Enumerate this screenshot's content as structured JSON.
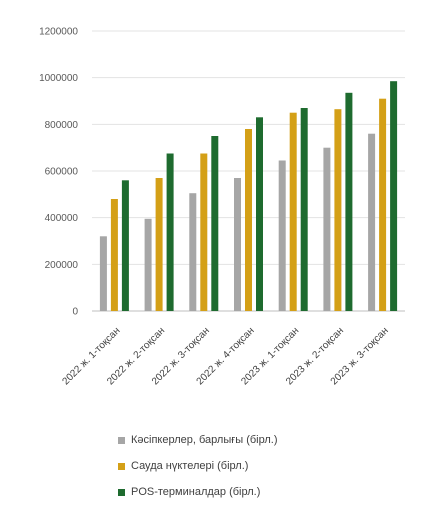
{
  "chart_data": {
    "type": "bar",
    "categories": [
      "2022 ж. 1-тоқсан",
      "2022 ж. 2-тоқсан",
      "2022 ж. 3-тоқсан",
      "2022 ж. 4-тоқсан",
      "2023 ж. 1-тоқсан",
      "2023 ж. 2-тоқсан",
      "2023 ж. 3-тоқсан"
    ],
    "series": [
      {
        "name": "Кәсіпкерлер, барлығы (бірл.)",
        "color": "#a6a6a6",
        "values": [
          320000,
          395000,
          505000,
          570000,
          645000,
          700000,
          760000
        ]
      },
      {
        "name": "Сауда нүктелері (бірл.)",
        "color": "#d4a017",
        "values": [
          480000,
          570000,
          675000,
          780000,
          850000,
          865000,
          910000
        ]
      },
      {
        "name": "POS-терминалдар (бірл.)",
        "color": "#1e6b2f",
        "values": [
          560000,
          675000,
          750000,
          830000,
          870000,
          935000,
          985000
        ]
      }
    ],
    "yticks": [
      "0",
      "200000",
      "400000",
      "600000",
      "800000",
      "1000000",
      "1200000"
    ],
    "ylim": [
      0,
      1200000
    ],
    "grid": true,
    "legend_position": "bottom"
  }
}
